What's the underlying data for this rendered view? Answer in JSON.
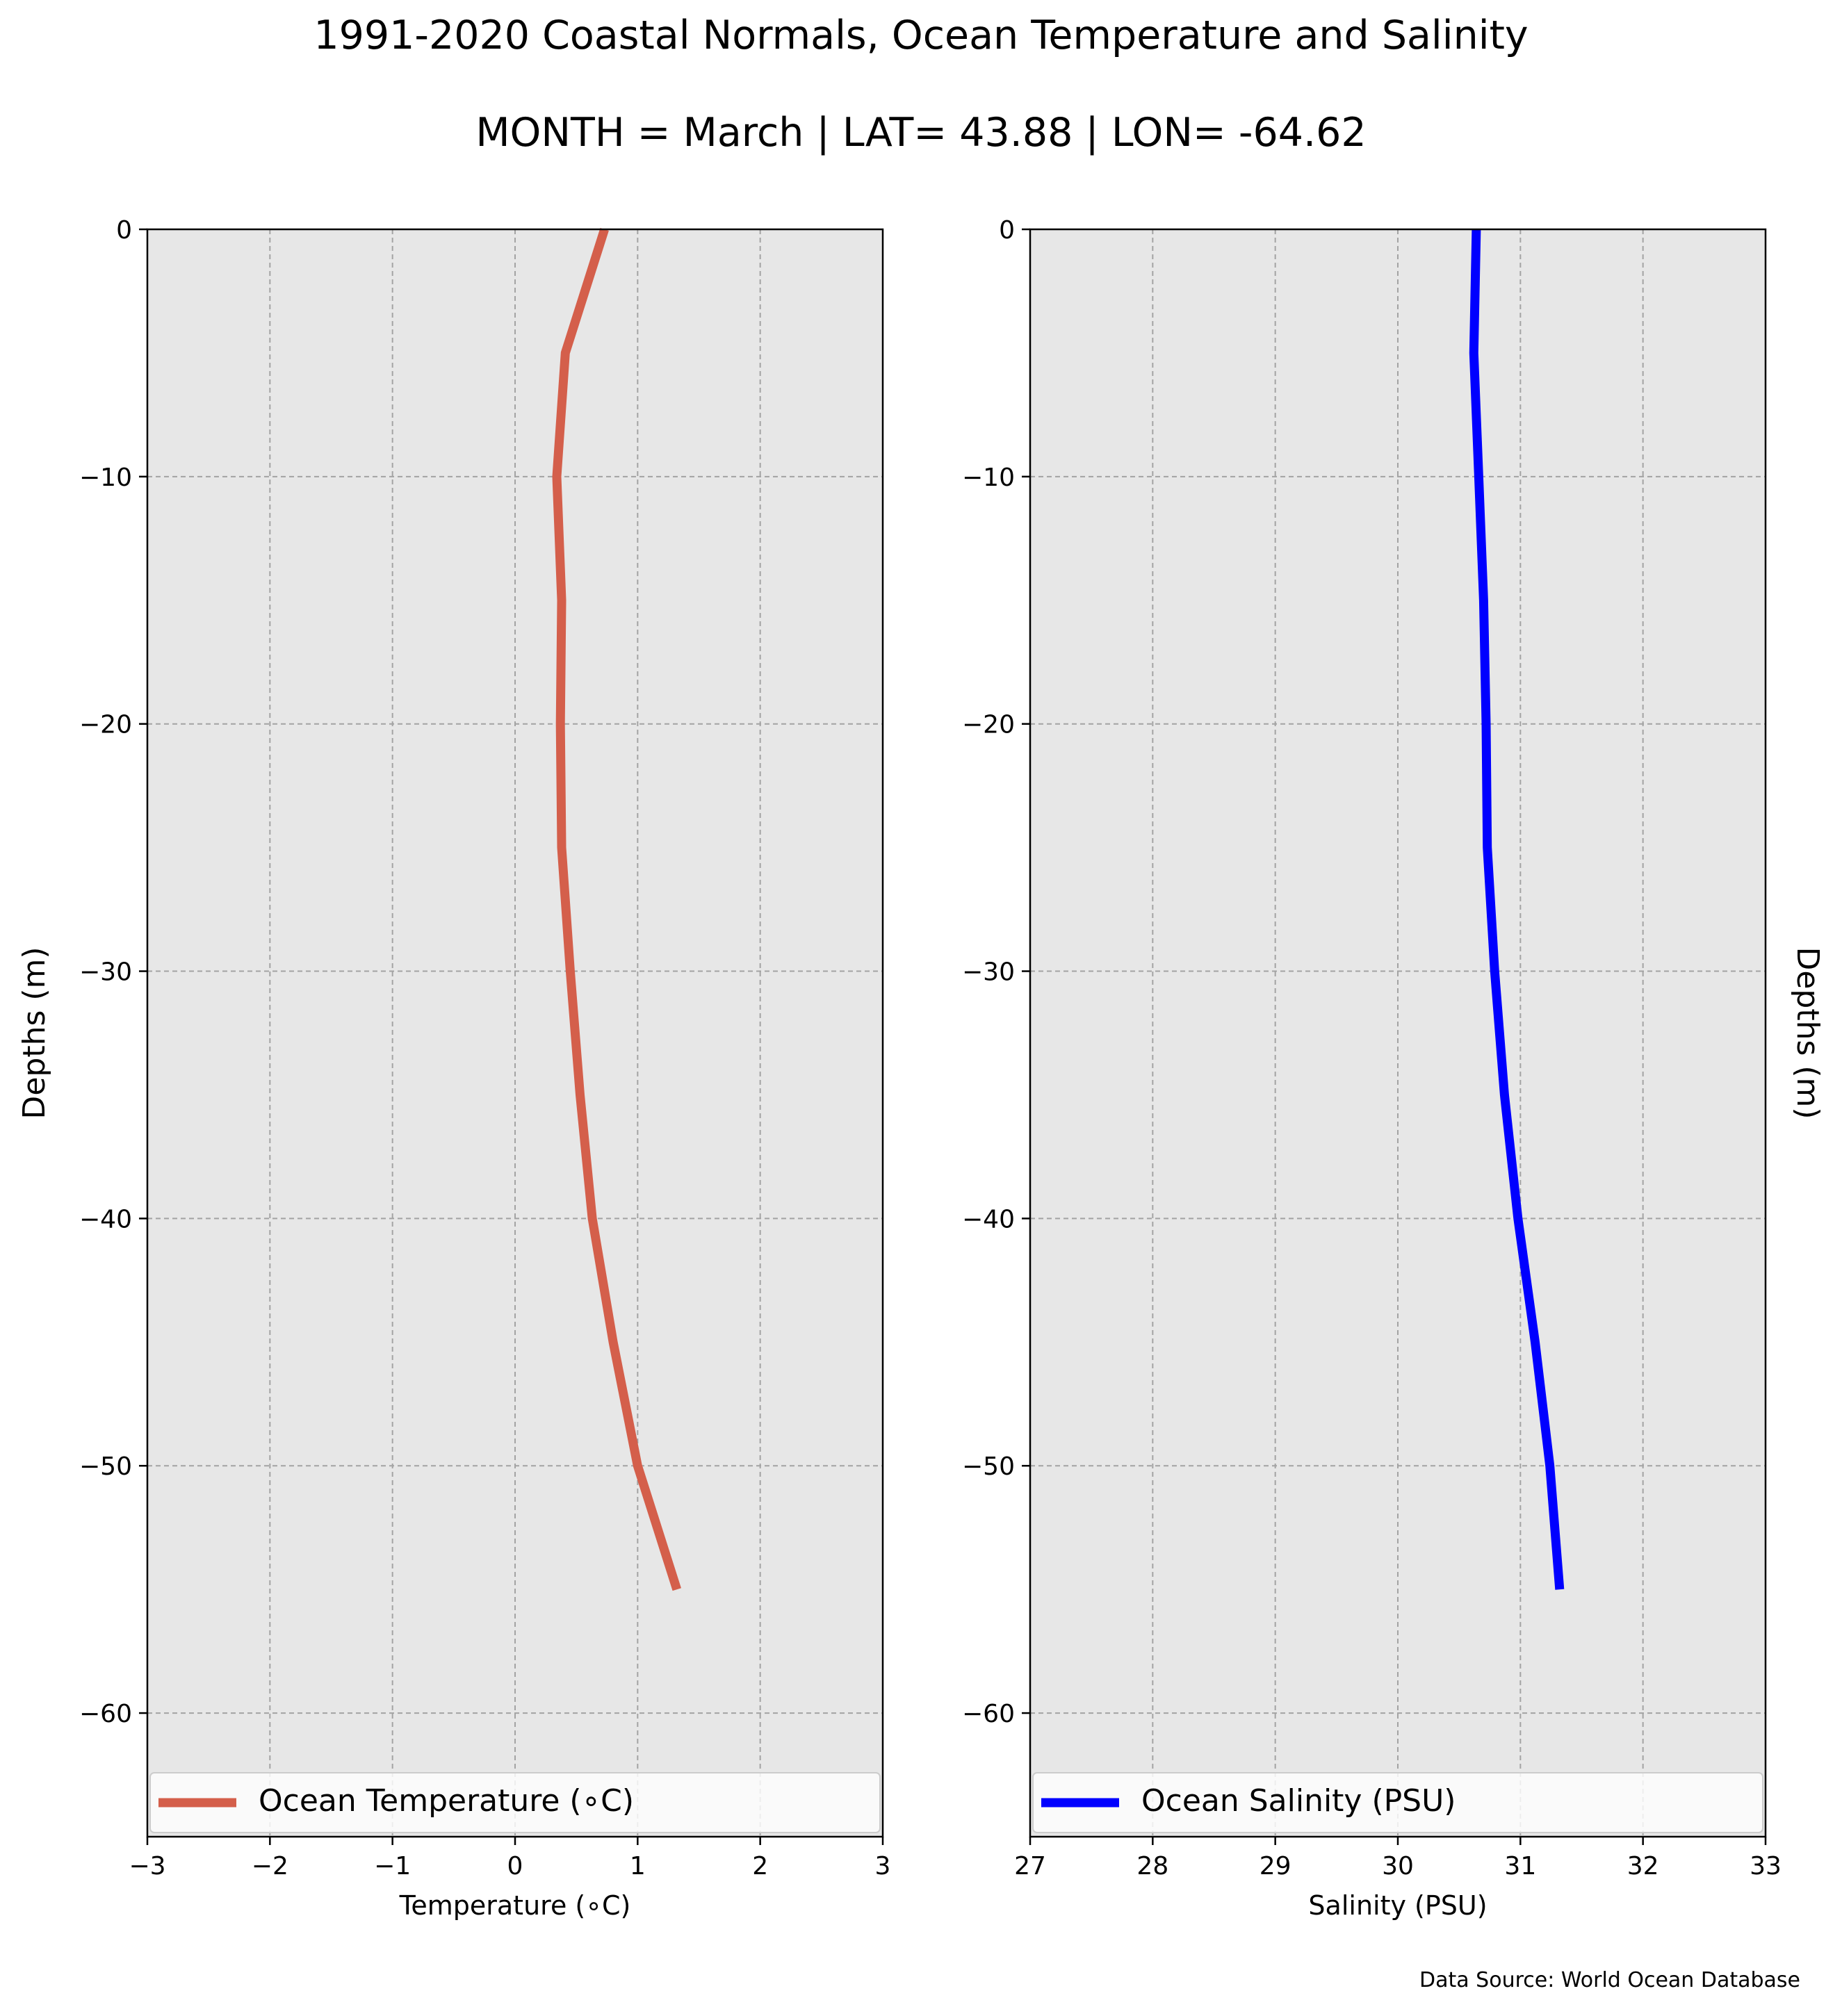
{
  "title": "1991-2020 Coastal Normals, Ocean Temperature and Salinity",
  "subtitle": "MONTH = March | LAT= 43.88 | LON= -64.62",
  "source_note": "Data Source: World Ocean Database",
  "chart_data": [
    {
      "type": "line",
      "xlabel": "Temperature ($^\\circ$C)",
      "xlabel_display": "Temperature (∘C)",
      "ylabel": "Depths (m)",
      "xlim": [
        -3,
        3
      ],
      "ylim": [
        -65,
        0
      ],
      "xticks": [
        -3,
        -2,
        -1,
        0,
        1,
        2,
        3
      ],
      "xtick_labels": [
        "−3",
        "−2",
        "−1",
        "0",
        "1",
        "2",
        "3"
      ],
      "yticks": [
        0,
        -10,
        -20,
        -30,
        -40,
        -50,
        -60
      ],
      "ytick_labels": [
        "0",
        "−10",
        "−20",
        "−30",
        "−40",
        "−50",
        "−60"
      ],
      "grid": true,
      "legend_position": "bottom",
      "series": [
        {
          "name": "Ocean Temperature (∘C)",
          "color": "#d45f4b",
          "x": [
            0.73,
            0.41,
            0.34,
            0.38,
            0.37,
            0.38,
            0.45,
            0.53,
            0.63,
            0.8,
            1.0,
            1.32
          ],
          "y": [
            0,
            -5,
            -10,
            -15,
            -20,
            -25,
            -30,
            -35,
            -40,
            -45,
            -50,
            -55
          ]
        }
      ]
    },
    {
      "type": "line",
      "xlabel": "Salinity (PSU)",
      "ylabel": "Depths (m)",
      "xlim": [
        27,
        33
      ],
      "ylim": [
        -65,
        0
      ],
      "xticks": [
        27,
        28,
        29,
        30,
        31,
        32,
        33
      ],
      "xtick_labels": [
        "27",
        "28",
        "29",
        "30",
        "31",
        "32",
        "33"
      ],
      "yticks": [
        0,
        -10,
        -20,
        -30,
        -40,
        -50,
        -60
      ],
      "ytick_labels": [
        "0",
        "−10",
        "−20",
        "−30",
        "−40",
        "−50",
        "−60"
      ],
      "grid": true,
      "legend_position": "bottom",
      "series": [
        {
          "name": "Ocean Salinity (PSU)",
          "color": "#0000ff",
          "x": [
            30.64,
            30.62,
            30.66,
            30.7,
            30.72,
            30.73,
            30.79,
            30.87,
            30.98,
            31.12,
            31.24,
            31.32
          ],
          "y": [
            0,
            -5,
            -10,
            -15,
            -20,
            -25,
            -30,
            -35,
            -40,
            -45,
            -50,
            -55
          ]
        }
      ]
    }
  ]
}
